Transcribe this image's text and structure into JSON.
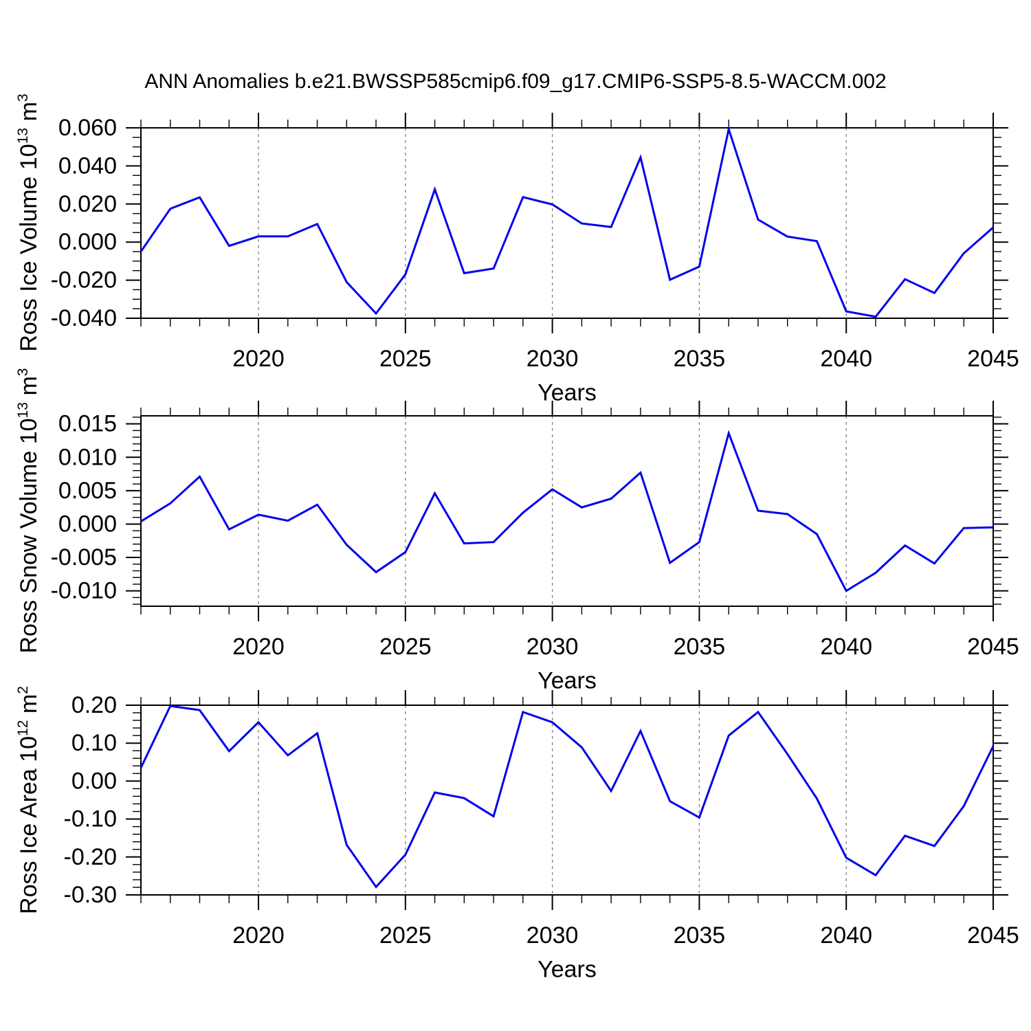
{
  "title": "ANN Anomalies b.e21.BWSSP585cmip6.f09_g17.CMIP6-SSP5-8.5-WACCM.002",
  "colors": {
    "line": "#0000ee",
    "axis": "#000000",
    "grid": "#7f7f7f",
    "background": "#ffffff"
  },
  "x_axis": {
    "label": "Years",
    "min": 2016,
    "max": 2045,
    "minor_step": 1,
    "major_ticks": [
      2020,
      2025,
      2030,
      2035,
      2040,
      2045
    ],
    "major_tick_labels": [
      "2020",
      "2025",
      "2030",
      "2035",
      "2040",
      "2045"
    ],
    "gridlines": [
      2020,
      2025,
      2030,
      2035,
      2040
    ]
  },
  "chart_data": [
    {
      "type": "line",
      "ylabel": {
        "base": "Ross Ice Volume 10",
        "exp": "13",
        "unit": " m",
        "unit_exp": "3"
      },
      "ylabel_text": "Ross Ice Volume 10^13 m^3",
      "ylim": [
        -0.04,
        0.06
      ],
      "yticks": {
        "values": [
          0.06,
          0.04,
          0.02,
          0.0,
          -0.02,
          -0.04
        ],
        "labels": [
          "0.060",
          "0.040",
          "0.020",
          "0.000",
          "-0.020",
          "-0.040"
        ]
      },
      "yminor_step": 0.005,
      "x": [
        2016,
        2017,
        2018,
        2019,
        2020,
        2021,
        2022,
        2023,
        2024,
        2025,
        2026,
        2027,
        2028,
        2029,
        2030,
        2031,
        2032,
        2033,
        2034,
        2035,
        2036,
        2037,
        2038,
        2039,
        2040,
        2041,
        2042,
        2043,
        2044,
        2045
      ],
      "values": [
        -0.005,
        0.0175,
        0.0235,
        -0.002,
        0.003,
        0.003,
        0.0095,
        -0.021,
        -0.0375,
        -0.017,
        0.0277,
        -0.0163,
        -0.0139,
        0.0236,
        0.0198,
        0.0098,
        0.0079,
        0.0445,
        -0.0198,
        -0.0129,
        0.0593,
        0.0118,
        0.0029,
        0.0005,
        -0.0364,
        -0.0392,
        -0.0195,
        -0.0267,
        -0.0059,
        0.0077
      ]
    },
    {
      "type": "line",
      "ylabel": {
        "base": "Ross Snow Volume 10",
        "exp": "13",
        "unit": " m",
        "unit_exp": "3"
      },
      "ylabel_text": "Ross Snow Volume 10^13 m^3",
      "ylim": [
        -0.0123,
        0.0162
      ],
      "yticks": {
        "values": [
          0.015,
          0.01,
          0.005,
          0.0,
          -0.005,
          -0.01
        ],
        "labels": [
          "0.015",
          "0.010",
          "0.005",
          "0.000",
          "-0.005",
          "-0.010"
        ]
      },
      "yminor_step": 0.001,
      "x": [
        2016,
        2017,
        2018,
        2019,
        2020,
        2021,
        2022,
        2023,
        2024,
        2025,
        2026,
        2027,
        2028,
        2029,
        2030,
        2031,
        2032,
        2033,
        2034,
        2035,
        2036,
        2037,
        2038,
        2039,
        2040,
        2041,
        2042,
        2043,
        2044,
        2045
      ],
      "values": [
        0.0004,
        0.0031,
        0.0071,
        -0.0008,
        0.0014,
        0.0005,
        0.0029,
        -0.0031,
        -0.0072,
        -0.0042,
        0.0046,
        -0.0029,
        -0.0027,
        0.0017,
        0.0052,
        0.0025,
        0.0038,
        0.0077,
        -0.0058,
        -0.0027,
        0.0136,
        0.002,
        0.0015,
        -0.0015,
        -0.01,
        -0.0073,
        -0.0032,
        -0.0059,
        -0.0006,
        -0.0005
      ]
    },
    {
      "type": "line",
      "ylabel": {
        "base": "Ross Ice Area 10",
        "exp": "12",
        "unit": " m",
        "unit_exp": "2"
      },
      "ylabel_text": "Ross Ice Area 10^12 m^2",
      "ylim": [
        -0.3,
        0.2
      ],
      "yticks": {
        "values": [
          0.2,
          0.1,
          0.0,
          -0.1,
          -0.2,
          -0.3
        ],
        "labels": [
          "0.20",
          "0.10",
          "0.00",
          "-0.10",
          "-0.20",
          "-0.30"
        ]
      },
      "yminor_step": 0.02,
      "x": [
        2016,
        2017,
        2018,
        2019,
        2020,
        2021,
        2022,
        2023,
        2024,
        2025,
        2026,
        2027,
        2028,
        2029,
        2030,
        2031,
        2032,
        2033,
        2034,
        2035,
        2036,
        2037,
        2038,
        2039,
        2040,
        2041,
        2042,
        2043,
        2044,
        2045
      ],
      "values": [
        0.035,
        0.198,
        0.187,
        0.079,
        0.155,
        0.068,
        0.126,
        -0.168,
        -0.279,
        -0.194,
        -0.03,
        -0.045,
        -0.093,
        0.182,
        0.155,
        0.089,
        -0.026,
        0.132,
        -0.053,
        -0.096,
        0.12,
        0.182,
        0.071,
        -0.046,
        -0.202,
        -0.248,
        -0.144,
        -0.171,
        -0.066,
        0.092
      ]
    }
  ]
}
